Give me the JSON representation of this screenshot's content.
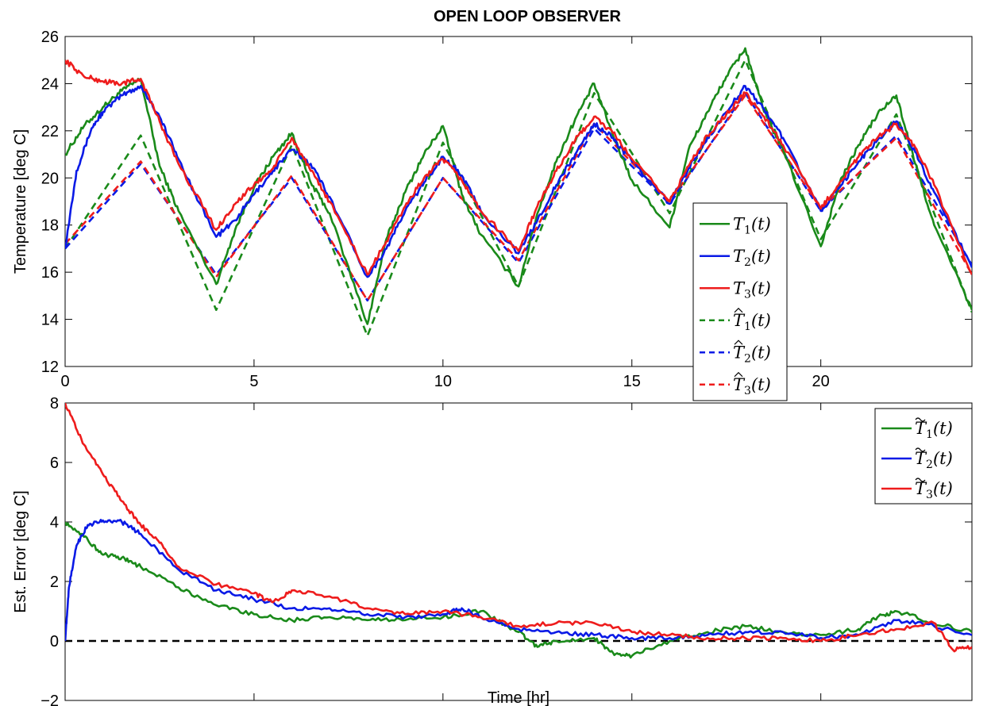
{
  "figure": {
    "title": "OPEN LOOP OBSERVER"
  },
  "chart_data": [
    {
      "type": "line",
      "title": "OPEN LOOP OBSERVER",
      "xlabel": "",
      "ylabel": "Temperature [deg C]",
      "xlim": [
        0,
        24
      ],
      "ylim": [
        12,
        26
      ],
      "xticks": [
        0,
        5,
        10,
        15,
        20
      ],
      "yticks": [
        12,
        14,
        16,
        18,
        20,
        22,
        24,
        26
      ],
      "grid": false,
      "legend_position": "right",
      "colors": {
        "green": "#1a8a1a",
        "blue": "#0a1ae6",
        "red": "#ee1c1c"
      },
      "series": [
        {
          "name": "T1(t)",
          "label_base": "T",
          "label_sub": "1",
          "label_mark": "",
          "color": "green",
          "style": "solid",
          "x": [
            0,
            0.5,
            1,
            1.5,
            2,
            2.5,
            3,
            4,
            4.5,
            5,
            5.5,
            6,
            6.5,
            7,
            8,
            8.5,
            9,
            9.5,
            10,
            10.5,
            11,
            12,
            12.5,
            13,
            13.5,
            14,
            14.5,
            15,
            16,
            16.5,
            17,
            17.5,
            18,
            18.5,
            19,
            20,
            20.5,
            21,
            21.5,
            22,
            22.5,
            23,
            24
          ],
          "y": [
            21,
            22.2,
            23.0,
            23.7,
            24.2,
            20.5,
            18.6,
            15.5,
            17.8,
            19.6,
            20.9,
            21.9,
            19.8,
            18.5,
            13.8,
            17.4,
            19.4,
            21.0,
            22.2,
            19.3,
            17.6,
            15.4,
            18.5,
            20.7,
            22.5,
            24.0,
            21.8,
            19.9,
            17.9,
            21.2,
            22.8,
            24.3,
            25.5,
            22.8,
            21.2,
            17.1,
            19.8,
            21.4,
            22.7,
            23.5,
            20.6,
            18.0,
            14.4
          ]
        },
        {
          "name": "T2(t)",
          "label_base": "T",
          "label_sub": "2",
          "label_mark": "",
          "color": "blue",
          "style": "solid",
          "x": [
            0,
            0.3,
            0.7,
            1,
            1.5,
            2,
            2.5,
            3,
            4,
            4.5,
            5,
            5.5,
            6,
            6.5,
            7,
            8,
            8.5,
            9,
            9.5,
            10,
            10.5,
            11,
            12,
            12.5,
            13,
            13.5,
            14,
            14.5,
            15,
            16,
            16.5,
            17,
            17.5,
            18,
            18.5,
            19,
            20,
            20.5,
            21,
            21.5,
            22,
            22.5,
            23,
            24
          ],
          "y": [
            17,
            20.3,
            22.1,
            22.8,
            23.5,
            23.9,
            22.6,
            20.8,
            17.5,
            18.2,
            19.3,
            20.3,
            21.2,
            20.6,
            19.2,
            15.8,
            17.0,
            18.6,
            19.8,
            20.9,
            20.1,
            18.6,
            16.8,
            18.2,
            19.7,
            21.0,
            22.3,
            21.7,
            20.7,
            18.9,
            20.4,
            21.7,
            22.8,
            23.9,
            22.9,
            21.7,
            18.6,
            19.6,
            20.7,
            21.6,
            22.4,
            21.1,
            19.4,
            16.2
          ]
        },
        {
          "name": "T3(t)",
          "label_base": "T",
          "label_sub": "3",
          "label_mark": "",
          "color": "red",
          "style": "solid",
          "x": [
            0,
            0.5,
            1,
            1.5,
            2,
            2.5,
            3,
            4,
            4.5,
            5,
            5.5,
            6,
            6.5,
            7,
            8,
            8.5,
            9,
            9.5,
            10,
            10.5,
            11,
            12,
            12.5,
            13,
            13.5,
            14,
            14.5,
            15,
            16,
            16.5,
            17,
            17.5,
            18,
            18.5,
            19,
            20,
            20.5,
            21,
            21.5,
            22,
            22.5,
            23,
            24
          ],
          "y": [
            25,
            24.3,
            24.1,
            24.0,
            24.2,
            22.4,
            20.6,
            17.8,
            18.9,
            19.7,
            20.4,
            21.7,
            20.3,
            19.0,
            15.9,
            17.3,
            18.8,
            20.0,
            20.8,
            19.9,
            18.6,
            16.9,
            18.8,
            20.3,
            21.6,
            22.6,
            21.9,
            20.8,
            19.0,
            20.5,
            21.8,
            22.7,
            23.6,
            22.6,
            21.4,
            18.7,
            19.8,
            20.9,
            21.7,
            22.3,
            21.3,
            19.7,
            15.9
          ]
        },
        {
          "name": "T̂1(t)",
          "label_base": "T",
          "label_sub": "1",
          "label_mark": "hat",
          "color": "green",
          "style": "dashed",
          "x": [
            0,
            2,
            4,
            6,
            8,
            10,
            12,
            14,
            16,
            18,
            20,
            22,
            24
          ],
          "y": [
            17,
            21.8,
            14.4,
            21.4,
            13.3,
            21.5,
            15.4,
            23.6,
            18.5,
            25.0,
            17.4,
            22.7,
            14.3
          ]
        },
        {
          "name": "T̂2(t)",
          "label_base": "T",
          "label_sub": "2",
          "label_mark": "hat",
          "color": "blue",
          "style": "dashed",
          "x": [
            0,
            2,
            4,
            6,
            8,
            10,
            12,
            14,
            16,
            18,
            20,
            22,
            24
          ],
          "y": [
            17,
            20.6,
            15.9,
            20.0,
            14.8,
            20.0,
            16.4,
            22.1,
            18.9,
            23.6,
            18.6,
            21.8,
            16.3
          ]
        },
        {
          "name": "T̂3(t)",
          "label_base": "T",
          "label_sub": "3",
          "label_mark": "hat",
          "color": "red",
          "style": "dashed",
          "x": [
            0,
            2,
            4,
            6,
            8,
            10,
            12,
            14,
            16,
            18,
            20,
            22,
            24
          ],
          "y": [
            17.2,
            20.7,
            15.8,
            20.1,
            14.8,
            20.0,
            16.5,
            22.3,
            19.0,
            23.5,
            18.7,
            21.7,
            15.9
          ]
        }
      ]
    },
    {
      "type": "line",
      "title": "",
      "xlabel": "Time [hr]",
      "ylabel": "Est. Error [deg C]",
      "xlim": [
        0,
        24
      ],
      "ylim": [
        -2,
        8
      ],
      "xticks": [
        0,
        5,
        10,
        15,
        20
      ],
      "yticks": [
        -2,
        0,
        2,
        4,
        6,
        8
      ],
      "grid": false,
      "legend_position": "top-right",
      "reference_line": {
        "y": 0,
        "color": "#000000",
        "style": "dashed"
      },
      "series": [
        {
          "name": "T̃1(t)",
          "label_base": "T",
          "label_sub": "1",
          "label_mark": "tilde",
          "color": "green",
          "style": "solid",
          "x": [
            0,
            0.5,
            1,
            1.5,
            2,
            3,
            4,
            5,
            6,
            7,
            8,
            9,
            10,
            11,
            12,
            12.5,
            13,
            14,
            14.5,
            15,
            16,
            17,
            18,
            19,
            20,
            21,
            21.5,
            22,
            23,
            24
          ],
          "y": [
            4,
            3.5,
            2.9,
            2.8,
            2.5,
            1.8,
            1.2,
            0.9,
            0.7,
            0.8,
            0.7,
            0.7,
            0.8,
            1.0,
            0.3,
            -0.2,
            0.0,
            0.1,
            -0.4,
            -0.5,
            0.0,
            0.3,
            0.5,
            0.3,
            0.2,
            0.4,
            0.8,
            1.0,
            0.6,
            0.3
          ]
        },
        {
          "name": "T̃2(t)",
          "label_base": "T",
          "label_sub": "2",
          "label_mark": "tilde",
          "color": "blue",
          "style": "solid",
          "x": [
            0,
            0.1,
            0.3,
            0.6,
            1,
            1.5,
            2,
            3,
            4,
            5,
            6,
            7,
            8,
            9,
            10,
            10.5,
            11,
            12,
            13,
            14,
            15,
            16,
            17,
            18,
            19,
            20,
            21,
            22,
            23,
            24
          ],
          "y": [
            0,
            1.8,
            3.2,
            3.9,
            4.05,
            4.0,
            3.6,
            2.4,
            1.7,
            1.4,
            1.1,
            1.1,
            0.9,
            0.8,
            0.9,
            1.1,
            0.8,
            0.4,
            0.3,
            0.2,
            0.1,
            0.1,
            0.2,
            0.3,
            0.3,
            0.1,
            0.2,
            0.7,
            0.5,
            0.2
          ]
        },
        {
          "name": "T̃3(t)",
          "label_base": "T",
          "label_sub": "3",
          "label_mark": "tilde",
          "color": "red",
          "style": "solid",
          "x": [
            0,
            0.5,
            1,
            1.5,
            2,
            2.5,
            3,
            4,
            5,
            5.5,
            6,
            7,
            8,
            9,
            10,
            11,
            12,
            13,
            14,
            15,
            16,
            17,
            18,
            19,
            20,
            21,
            22,
            23,
            23.5,
            24
          ],
          "y": [
            8,
            6.6,
            5.6,
            4.7,
            3.9,
            3.3,
            2.5,
            1.9,
            1.6,
            1.3,
            1.7,
            1.5,
            1.1,
            0.9,
            1.0,
            0.8,
            0.5,
            0.6,
            0.6,
            0.3,
            0.2,
            0.1,
            0.1,
            0.1,
            0.0,
            0.2,
            0.4,
            0.6,
            -0.3,
            -0.2
          ]
        }
      ]
    }
  ]
}
